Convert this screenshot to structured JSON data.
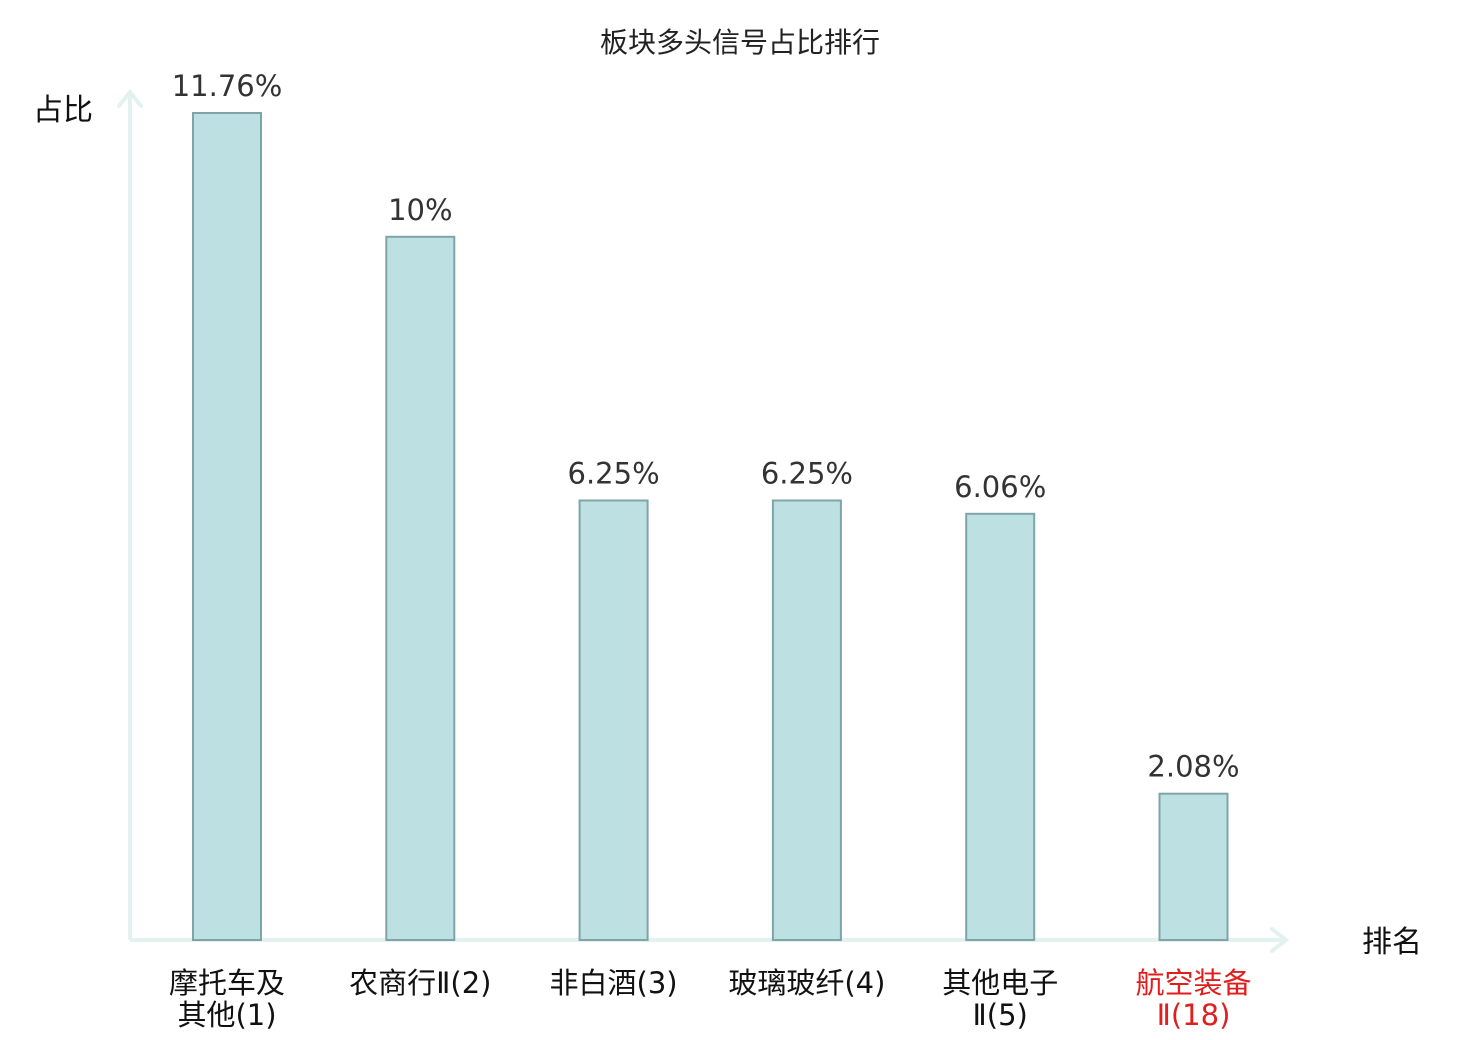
{
  "chart_data": {
    "type": "bar",
    "title": "板块多头信号占比排行",
    "xlabel": "排名",
    "ylabel": "占比",
    "categories": [
      [
        "摩托车及",
        "其他(1)"
      ],
      [
        "农商行Ⅱ(2)"
      ],
      [
        "非白酒(3)"
      ],
      [
        "玻璃玻纤(4)"
      ],
      [
        "其他电子",
        "Ⅱ(5)"
      ],
      [
        "航空装备",
        "Ⅱ(18)"
      ]
    ],
    "values": [
      11.76,
      10,
      6.25,
      6.25,
      6.06,
      2.08
    ],
    "value_labels": [
      "11.76%",
      "10%",
      "6.25%",
      "6.25%",
      "6.06%",
      "2.08%"
    ],
    "highlight_index": 5,
    "ylim": [
      0,
      12.4
    ],
    "grid": false,
    "colors": {
      "bar_fill": "#bde0e3",
      "bar_stroke": "#7fa4a8",
      "axis": "#e3f2f0",
      "highlight_text": "#e01e1e"
    }
  }
}
